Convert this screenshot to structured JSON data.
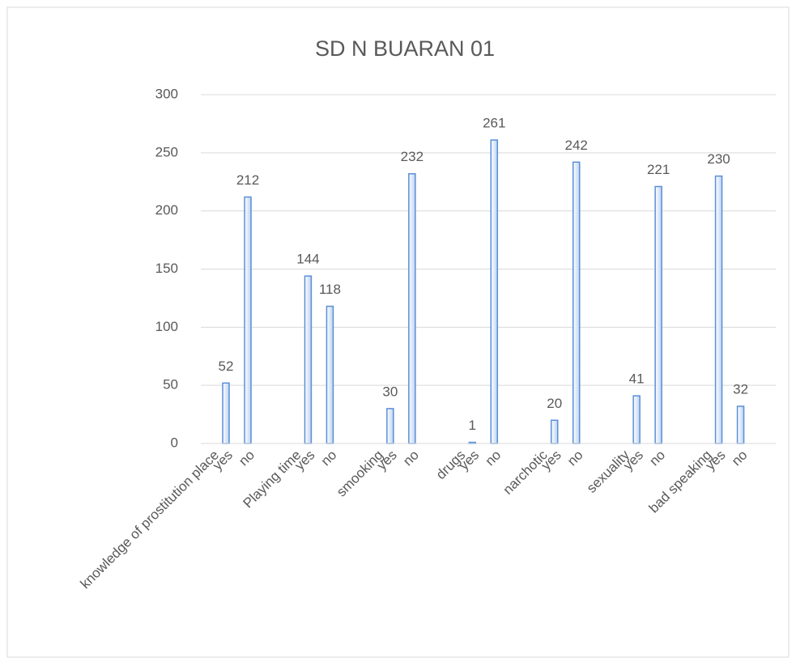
{
  "chart_data": {
    "type": "bar",
    "title": "SD N BUARAN 01",
    "categories": [
      "knowledge of prostitution place",
      "yes",
      "no",
      "Playing time",
      "yes",
      "no",
      "smooking",
      "yes",
      "no",
      "drugs",
      "yes",
      "no",
      "narchotic",
      "yes",
      "no",
      "sexuality",
      "yes",
      "no",
      "bad speaking",
      "yes",
      "no"
    ],
    "values": [
      null,
      52,
      212,
      null,
      144,
      118,
      null,
      30,
      232,
      null,
      1,
      261,
      null,
      20,
      242,
      null,
      41,
      221,
      null,
      230,
      32
    ],
    "color": "#5b8fd6",
    "ylim": [
      0,
      300
    ],
    "yticks": [
      0,
      50,
      100,
      150,
      200,
      250,
      300
    ],
    "grid": true
  }
}
